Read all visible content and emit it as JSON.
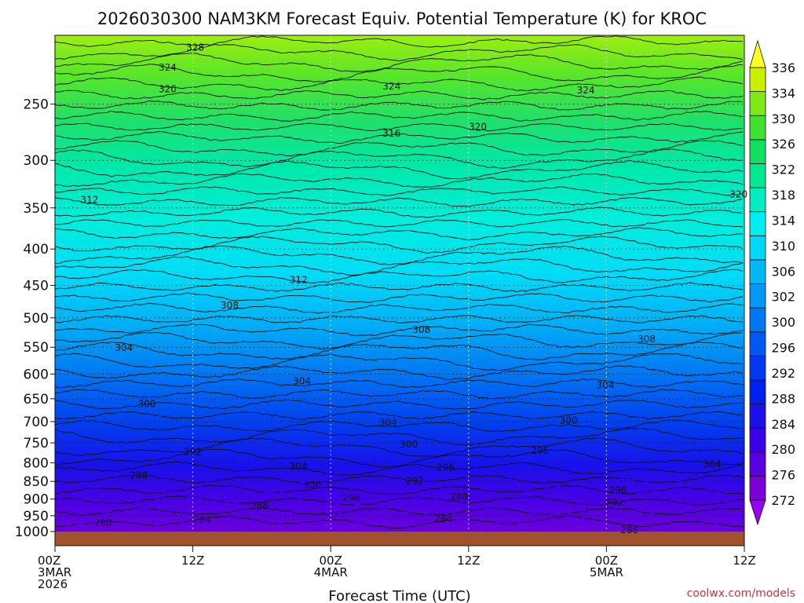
{
  "chart_data": {
    "type": "heatmap",
    "title": "2026030300 NAM3KM Forecast Equiv. Potential Temperature (K) for KROC",
    "xlabel": "Forecast Time (UTC)",
    "ylabel": "",
    "credit": "coolwx.com/models",
    "y_axis": {
      "scale": "log-pressure",
      "range_hpa": [
        1000,
        200
      ],
      "ticks": [
        "250",
        "300",
        "350",
        "400",
        "450",
        "500",
        "550",
        "600",
        "650",
        "700",
        "750",
        "800",
        "850",
        "900",
        "950",
        "1000"
      ],
      "tick_values": [
        250,
        300,
        350,
        400,
        450,
        500,
        550,
        600,
        650,
        700,
        750,
        800,
        850,
        900,
        950,
        1000
      ]
    },
    "x_axis": {
      "range_hours": [
        0,
        60
      ],
      "ticks": [
        {
          "hour": 0,
          "lines": [
            "00Z",
            "3MAR",
            "2026"
          ]
        },
        {
          "hour": 12,
          "lines": [
            "12Z"
          ]
        },
        {
          "hour": 24,
          "lines": [
            "00Z",
            "4MAR"
          ]
        },
        {
          "hour": 36,
          "lines": [
            "12Z"
          ]
        },
        {
          "hour": 48,
          "lines": [
            "00Z",
            "5MAR"
          ]
        },
        {
          "hour": 60,
          "lines": [
            "12Z"
          ]
        }
      ]
    },
    "colorbar": {
      "levels": [
        272,
        276,
        280,
        284,
        288,
        292,
        296,
        300,
        302,
        306,
        310,
        314,
        318,
        322,
        326,
        330,
        334,
        336
      ],
      "labels": [
        "336",
        "334",
        "330",
        "326",
        "322",
        "318",
        "314",
        "310",
        "306",
        "302",
        "300",
        "296",
        "292",
        "288",
        "284",
        "280",
        "276",
        "272"
      ],
      "colors": [
        "#7a00d8",
        "#5a00e0",
        "#3a00e6",
        "#1a10ea",
        "#0020ee",
        "#0038f0",
        "#0058f2",
        "#0078f4",
        "#0098f6",
        "#00b8f8",
        "#00d8fa",
        "#00eef0",
        "#00eec0",
        "#00e890",
        "#10e060",
        "#40e030",
        "#80e818",
        "#c8f000"
      ]
    },
    "contour_labels": [
      {
        "text": "328",
        "hour": 12.2,
        "hpa": 208
      },
      {
        "text": "324",
        "hour": 9.8,
        "hpa": 222
      },
      {
        "text": "324",
        "hour": 29.3,
        "hpa": 236
      },
      {
        "text": "324",
        "hour": 46.2,
        "hpa": 239
      },
      {
        "text": "320",
        "hour": 9.8,
        "hpa": 238
      },
      {
        "text": "320",
        "hour": 36.8,
        "hpa": 269
      },
      {
        "text": "320",
        "hour": 59.5,
        "hpa": 335
      },
      {
        "text": "316",
        "hour": 29.3,
        "hpa": 275
      },
      {
        "text": "312",
        "hour": 3.0,
        "hpa": 341
      },
      {
        "text": "312",
        "hour": 21.2,
        "hpa": 442
      },
      {
        "text": "308",
        "hour": 15.2,
        "hpa": 480
      },
      {
        "text": "308",
        "hour": 31.9,
        "hpa": 520
      },
      {
        "text": "308",
        "hour": 51.5,
        "hpa": 536
      },
      {
        "text": "304",
        "hour": 6.0,
        "hpa": 551
      },
      {
        "text": "304",
        "hour": 21.5,
        "hpa": 614
      },
      {
        "text": "304",
        "hour": 29.0,
        "hpa": 702
      },
      {
        "text": "304",
        "hour": 21.2,
        "hpa": 810
      },
      {
        "text": "304",
        "hour": 47.9,
        "hpa": 622
      },
      {
        "text": "304",
        "hour": 57.2,
        "hpa": 803
      },
      {
        "text": "300",
        "hour": 8.0,
        "hpa": 661
      },
      {
        "text": "300",
        "hour": 30.8,
        "hpa": 754
      },
      {
        "text": "300",
        "hour": 44.7,
        "hpa": 697
      },
      {
        "text": "300",
        "hour": 22.4,
        "hpa": 860
      },
      {
        "text": "296",
        "hour": 42.2,
        "hpa": 769
      },
      {
        "text": "296",
        "hour": 34.0,
        "hpa": 813
      },
      {
        "text": "296",
        "hour": 25.8,
        "hpa": 896
      },
      {
        "text": "296",
        "hour": 49.0,
        "hpa": 875
      },
      {
        "text": "292",
        "hour": 12.0,
        "hpa": 772
      },
      {
        "text": "292",
        "hour": 31.3,
        "hpa": 848
      },
      {
        "text": "292",
        "hour": 48.7,
        "hpa": 910
      },
      {
        "text": "288",
        "hour": 7.3,
        "hpa": 834
      },
      {
        "text": "288",
        "hour": 17.8,
        "hpa": 920
      },
      {
        "text": "288",
        "hour": 35.2,
        "hpa": 893
      },
      {
        "text": "288",
        "hour": 50.0,
        "hpa": 995
      },
      {
        "text": "284",
        "hour": 12.8,
        "hpa": 963
      },
      {
        "text": "284",
        "hour": 33.8,
        "hpa": 960
      },
      {
        "text": "280",
        "hour": 4.2,
        "hpa": 972
      }
    ]
  }
}
